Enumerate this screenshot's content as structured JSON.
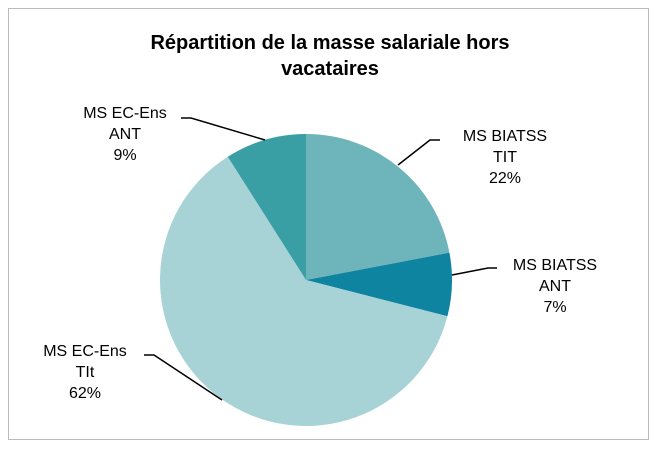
{
  "chart_data": {
    "type": "pie",
    "title": "Répartition de la masse salariale hors vacataires",
    "categories": [
      "MS BIATSS TIT",
      "MS BIATSS ANT",
      "MS EC-Ens TIt",
      "MS EC-Ens ANT"
    ],
    "values": [
      22,
      7,
      62,
      9
    ],
    "value_labels": [
      "22%",
      "7%",
      "62%",
      "9%"
    ],
    "colors": [
      "#6db5bb",
      "#0f84a0",
      "#a8d3d6",
      "#3a9ea5"
    ]
  }
}
